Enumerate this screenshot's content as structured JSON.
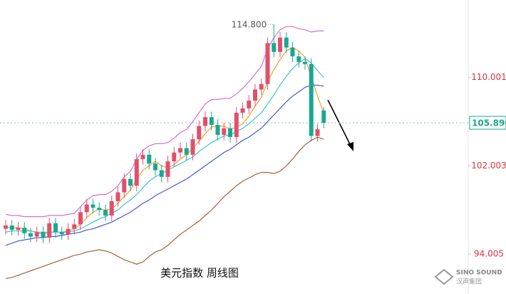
{
  "chart_data": {
    "type": "candlestick",
    "title": "美元指数 周线图",
    "ylim": [
      90.4,
      117.0
    ],
    "yticks": [
      94.005,
      102.003,
      110.001
    ],
    "last_price": {
      "value": 105.89,
      "label": "105.890"
    },
    "annotations": [
      {
        "label": "114.800",
        "value": 114.8
      }
    ],
    "up_color": "#e0506a",
    "down_color": "#1aa88f",
    "open": [
      96.3,
      96.6,
      96.2,
      96.4,
      95.9,
      95.6,
      96.0,
      95.5,
      96.8,
      96.0,
      95.8,
      96.3,
      96.7,
      97.8,
      98.5,
      98.2,
      98.0,
      97.5,
      98.8,
      99.6,
      100.8,
      100.2,
      102.6,
      103.0,
      102.2,
      101.6,
      101.0,
      102.4,
      103.2,
      103.6,
      103.0,
      104.4,
      105.6,
      106.4,
      105.7,
      104.8,
      105.4,
      104.6,
      106.8,
      107.2,
      107.9,
      108.9,
      109.4,
      113.1,
      112.3,
      113.6,
      112.7,
      111.9,
      111.4,
      111.2,
      104.7,
      107.0
    ],
    "high": [
      97.1,
      97.1,
      96.9,
      96.9,
      96.4,
      96.5,
      96.5,
      97.3,
      97.3,
      96.5,
      96.8,
      97.2,
      98.3,
      99.0,
      99.0,
      98.7,
      98.5,
      99.3,
      100.1,
      101.3,
      101.3,
      103.1,
      103.5,
      103.5,
      102.7,
      102.1,
      102.9,
      103.7,
      104.1,
      104.1,
      104.9,
      106.1,
      106.9,
      106.9,
      106.2,
      105.9,
      105.9,
      107.3,
      107.7,
      108.4,
      109.4,
      109.9,
      113.6,
      114.8,
      114.1,
      114.1,
      113.2,
      112.4,
      111.9,
      111.7,
      105.8,
      107.3
    ],
    "low": [
      95.8,
      95.7,
      95.7,
      95.4,
      95.1,
      95.1,
      95.0,
      95.0,
      95.5,
      95.3,
      95.3,
      95.8,
      96.2,
      97.3,
      97.7,
      97.5,
      97.0,
      97.0,
      98.3,
      99.1,
      99.7,
      99.7,
      102.1,
      101.7,
      101.1,
      100.5,
      100.5,
      101.9,
      102.7,
      102.5,
      102.5,
      103.9,
      105.1,
      105.2,
      104.3,
      104.3,
      104.1,
      104.1,
      106.3,
      106.7,
      107.4,
      108.4,
      108.9,
      111.8,
      111.8,
      112.2,
      111.4,
      110.9,
      110.7,
      104.2,
      104.2,
      105.4
    ],
    "close": [
      96.6,
      96.2,
      96.4,
      95.9,
      95.6,
      96.0,
      95.5,
      96.8,
      96.0,
      95.8,
      96.3,
      96.7,
      97.8,
      98.5,
      98.2,
      98.0,
      97.5,
      98.8,
      99.6,
      100.8,
      100.2,
      102.6,
      103.0,
      102.2,
      101.6,
      101.0,
      102.4,
      103.2,
      103.6,
      103.0,
      104.4,
      105.6,
      106.4,
      105.7,
      104.8,
      105.4,
      104.6,
      106.8,
      107.2,
      107.9,
      108.9,
      109.4,
      113.1,
      112.3,
      113.6,
      112.7,
      111.9,
      111.4,
      111.2,
      104.7,
      105.3,
      105.89
    ],
    "series": [
      {
        "color": "#d86fd0",
        "values": [
          97.6,
          97.5,
          97.5,
          97.4,
          97.4,
          97.4,
          97.4,
          97.5,
          97.5,
          97.5,
          97.6,
          97.7,
          98.3,
          98.9,
          99.3,
          99.4,
          99.4,
          99.7,
          100.2,
          101.0,
          101.5,
          102.6,
          103.4,
          103.8,
          104.0,
          104.0,
          104.1,
          104.5,
          105.0,
          105.3,
          106.0,
          106.8,
          107.6,
          108.0,
          108.0,
          108.1,
          108.1,
          108.5,
          109.0,
          109.6,
          110.3,
          111.0,
          112.6,
          113.6,
          114.3,
          114.6,
          114.6,
          114.4,
          114.3,
          114.1,
          114.2,
          114.2
        ]
      },
      {
        "color": "#f0a030",
        "values": [
          96.4,
          96.4,
          96.4,
          96.3,
          96.1,
          96.0,
          95.8,
          96.0,
          96.0,
          96.0,
          96.1,
          96.3,
          96.7,
          97.3,
          97.8,
          98.1,
          98.0,
          98.1,
          98.6,
          99.2,
          99.8,
          100.8,
          101.6,
          102.0,
          102.4,
          102.0,
          101.8,
          102.1,
          102.6,
          103.0,
          103.6,
          104.2,
          104.9,
          105.5,
          105.6,
          105.6,
          105.3,
          105.5,
          105.8,
          106.5,
          107.4,
          108.2,
          109.6,
          110.7,
          111.6,
          112.4,
          112.7,
          112.4,
          111.8,
          110.0,
          108.3,
          106.8
        ]
      },
      {
        "color": "#3cc4d8",
        "values": [
          96.0,
          96.1,
          96.1,
          96.1,
          96.1,
          96.0,
          96.0,
          96.0,
          96.0,
          96.0,
          96.0,
          96.1,
          96.3,
          96.6,
          96.9,
          97.2,
          97.4,
          97.7,
          98.0,
          98.5,
          98.9,
          99.4,
          100.0,
          100.6,
          101.0,
          101.3,
          101.6,
          101.9,
          102.2,
          102.5,
          102.8,
          103.3,
          103.7,
          104.1,
          104.4,
          104.7,
          104.8,
          105.1,
          105.4,
          105.8,
          106.3,
          106.8,
          107.6,
          108.4,
          109.3,
          110.1,
          110.8,
          111.3,
          111.7,
          111.3,
          110.6,
          110.0
        ]
      },
      {
        "color": "#4a58d8",
        "values": [
          94.8,
          95.0,
          95.2,
          95.3,
          95.4,
          95.5,
          95.5,
          95.6,
          95.6,
          95.7,
          95.8,
          95.9,
          96.0,
          96.2,
          96.3,
          96.5,
          96.7,
          96.9,
          97.2,
          97.5,
          97.8,
          98.2,
          98.6,
          98.9,
          99.3,
          99.6,
          99.9,
          100.2,
          100.5,
          100.8,
          101.2,
          101.6,
          102.0,
          102.4,
          102.8,
          103.2,
          103.5,
          103.9,
          104.3,
          104.6,
          105.0,
          105.4,
          106.0,
          106.6,
          107.2,
          107.8,
          108.3,
          108.7,
          109.1,
          109.3,
          109.3,
          109.2
        ]
      },
      {
        "color": "#a8623a",
        "values": [
          91.8,
          91.9,
          92.1,
          92.3,
          92.5,
          92.7,
          92.9,
          93.1,
          93.3,
          93.5,
          93.7,
          93.9,
          94.0,
          94.2,
          94.3,
          94.4,
          94.3,
          94.1,
          93.8,
          93.5,
          93.3,
          93.1,
          93.3,
          93.8,
          94.2,
          94.4,
          94.8,
          95.3,
          95.8,
          96.2,
          96.6,
          97.0,
          97.5,
          98.0,
          98.6,
          99.2,
          99.7,
          100.2,
          100.6,
          100.9,
          101.2,
          101.4,
          101.4,
          101.3,
          101.5,
          102.0,
          102.6,
          103.3,
          103.9,
          104.3,
          104.6,
          104.4
        ]
      }
    ]
  },
  "logo": {
    "name": "SINO SOUND",
    "subtitle": "汉声集团"
  }
}
